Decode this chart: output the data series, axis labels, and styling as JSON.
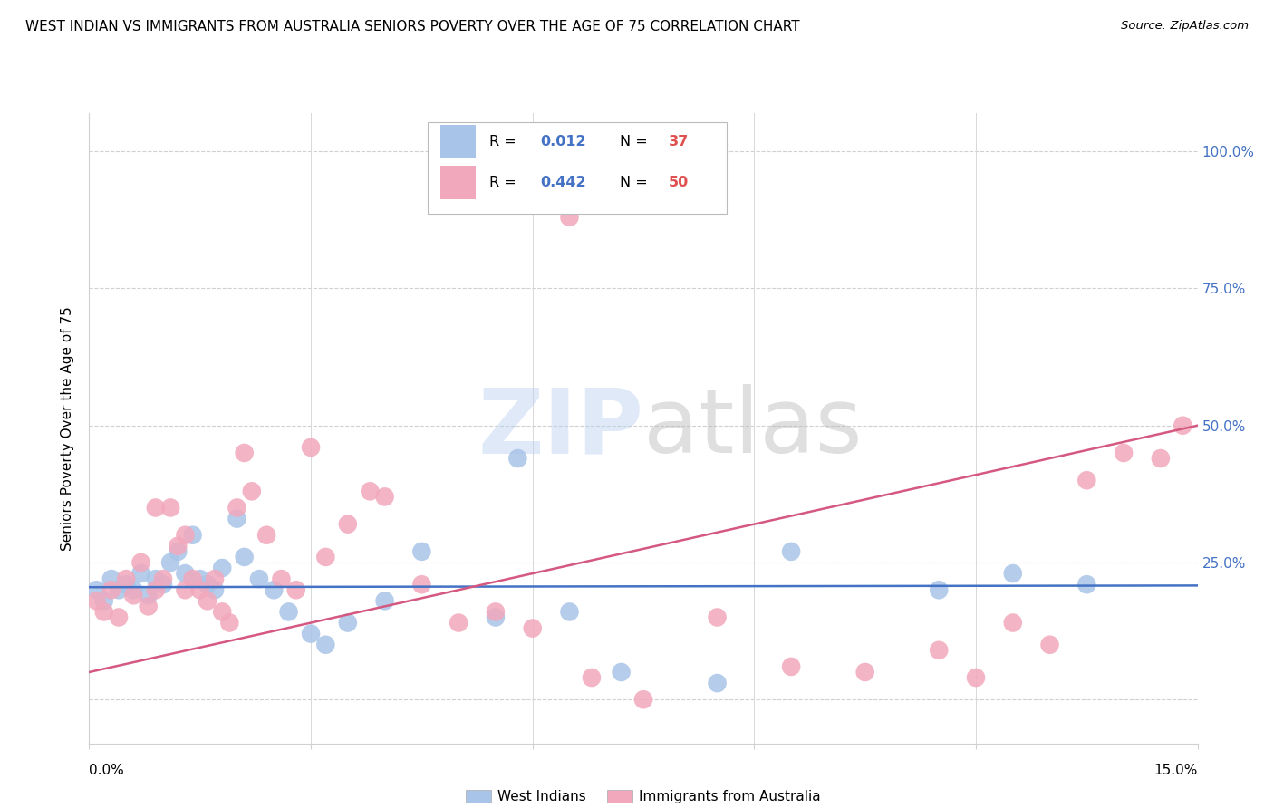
{
  "title": "WEST INDIAN VS IMMIGRANTS FROM AUSTRALIA SENIORS POVERTY OVER THE AGE OF 75 CORRELATION CHART",
  "source": "Source: ZipAtlas.com",
  "ylabel": "Seniors Poverty Over the Age of 75",
  "xmin": 0.0,
  "xmax": 15.0,
  "ymin": -8.0,
  "ymax": 107.0,
  "legend1_R": "0.012",
  "legend1_N": "37",
  "legend2_R": "0.442",
  "legend2_N": "50",
  "blue_color": "#a8c4e8",
  "pink_color": "#f2a8bc",
  "line_blue": "#4472c4",
  "line_pink": "#d45880",
  "west_indians_x": [
    0.1,
    0.2,
    0.3,
    0.4,
    0.5,
    0.6,
    0.7,
    0.8,
    0.9,
    1.0,
    1.1,
    1.2,
    1.3,
    1.4,
    1.5,
    1.6,
    1.7,
    1.8,
    2.0,
    2.1,
    2.3,
    2.5,
    2.7,
    3.0,
    3.2,
    3.5,
    4.0,
    4.5,
    5.5,
    5.8,
    6.5,
    7.2,
    8.5,
    9.5,
    11.5,
    12.5,
    13.5
  ],
  "west_indians_y": [
    20.0,
    18.0,
    22.0,
    20.0,
    21.0,
    20.0,
    23.0,
    19.0,
    22.0,
    21.0,
    25.0,
    27.0,
    23.0,
    30.0,
    22.0,
    21.0,
    20.0,
    24.0,
    33.0,
    26.0,
    22.0,
    20.0,
    16.0,
    12.0,
    10.0,
    14.0,
    18.0,
    27.0,
    15.0,
    44.0,
    16.0,
    5.0,
    3.0,
    27.0,
    20.0,
    23.0,
    21.0
  ],
  "australia_x": [
    0.1,
    0.2,
    0.3,
    0.4,
    0.5,
    0.6,
    0.7,
    0.8,
    0.9,
    1.0,
    1.1,
    1.2,
    1.3,
    1.4,
    1.5,
    1.6,
    1.7,
    1.8,
    1.9,
    2.0,
    2.2,
    2.4,
    2.6,
    2.8,
    3.0,
    3.5,
    3.8,
    4.0,
    4.5,
    5.0,
    5.5,
    6.0,
    6.8,
    7.5,
    8.5,
    9.5,
    10.5,
    11.5,
    12.0,
    12.5,
    13.0,
    13.5,
    14.0,
    14.5,
    14.8,
    0.9,
    1.3,
    2.1,
    3.2,
    6.5
  ],
  "australia_y": [
    18.0,
    16.0,
    20.0,
    15.0,
    22.0,
    19.0,
    25.0,
    17.0,
    20.0,
    22.0,
    35.0,
    28.0,
    30.0,
    22.0,
    20.0,
    18.0,
    22.0,
    16.0,
    14.0,
    35.0,
    38.0,
    30.0,
    22.0,
    20.0,
    46.0,
    32.0,
    38.0,
    37.0,
    21.0,
    14.0,
    16.0,
    13.0,
    4.0,
    0.0,
    15.0,
    6.0,
    5.0,
    9.0,
    4.0,
    14.0,
    10.0,
    40.0,
    45.0,
    44.0,
    50.0,
    35.0,
    20.0,
    45.0,
    26.0,
    88.0
  ],
  "wi_line_x0": 0.0,
  "wi_line_x1": 15.0,
  "wi_line_y0": 20.5,
  "wi_line_y1": 20.8,
  "aus_line_x0": 0.0,
  "aus_line_x1": 15.0,
  "aus_line_y0": 5.0,
  "aus_line_y1": 50.0
}
